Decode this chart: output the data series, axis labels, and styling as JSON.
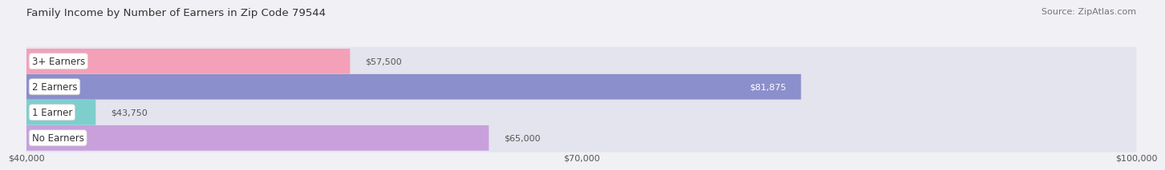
{
  "title": "Family Income by Number of Earners in Zip Code 79544",
  "source": "Source: ZipAtlas.com",
  "categories": [
    "No Earners",
    "1 Earner",
    "2 Earners",
    "3+ Earners"
  ],
  "values": [
    65000,
    43750,
    81875,
    57500
  ],
  "bar_colors": [
    "#c9a0dc",
    "#7ecece",
    "#8b8fcc",
    "#f4a0b8"
  ],
  "xlim_min": 40000,
  "xlim_max": 100000,
  "xticks": [
    40000,
    70000,
    100000
  ],
  "xtick_labels": [
    "$40,000",
    "$70,000",
    "$100,000"
  ],
  "value_labels": [
    "$65,000",
    "$43,750",
    "$81,875",
    "$57,500"
  ],
  "label_inside": [
    false,
    false,
    true,
    false
  ],
  "background_color": "#f0f0f5",
  "bar_background": "#e4e4ee",
  "title_fontsize": 9.5,
  "source_fontsize": 8,
  "tick_fontsize": 8,
  "bar_label_fontsize": 8,
  "category_fontsize": 8.5,
  "bar_height": 0.62
}
